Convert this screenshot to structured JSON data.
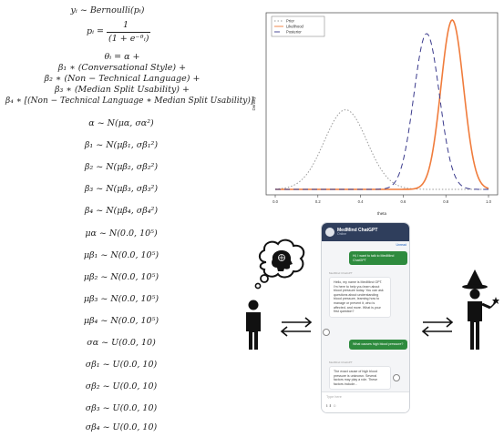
{
  "equations": {
    "likelihood": "yᵢ ~ Bernoulli(pᵢ)",
    "logistic_lhs": "pᵢ =",
    "logistic_num": "1",
    "logistic_den": "(1 + e⁻ᶿᵢ)",
    "linear": [
      "θᵢ = α +",
      "β₁ ∗ (Conversational Style) +",
      "β₂ ∗ (Non − Technical Language) +",
      "β₃ ∗ (Median Split Usability) +",
      "β₄ ∗ [(Non − Technical Language ∗ Median Split Usability)]"
    ],
    "priors": [
      "α ~ N(μα, σα²)",
      "β₁ ~ N(μβ₁, σβ₁²)",
      "β₂ ~ N(μβ₂, σβ₂²)",
      "β₃ ~ N(μβ₃, σβ₃²)",
      "β₄ ~ N(μβ₄, σβ₄²)",
      "μα ~ N(0.0, 10⁵)",
      "μβ₁ ~ N(0.0, 10⁵)",
      "μβ₂ ~ N(0.0, 10⁵)",
      "μβ₃ ~ N(0.0, 10⁵)",
      "μβ₄ ~ N(0.0, 10⁵)",
      "σα ~ U(0.0, 10)",
      "σβ₁ ~ U(0.0, 10)",
      "σβ₂ ~ U(0.0, 10)",
      "σβ₃ ~ U(0.0, 10)",
      "σβ₄ ~ U(0.0, 10)"
    ]
  },
  "chart_data": {
    "type": "line",
    "xlabel": "theta",
    "ylabel": "Density",
    "xlim": [
      0.0,
      1.0
    ],
    "x_ticks": [
      "0.0",
      "0.2",
      "0.4",
      "0.6",
      "0.8",
      "1.0"
    ],
    "legend_position": "top-left",
    "series": [
      {
        "name": "Prior",
        "mean": 0.33,
        "sd": 0.1,
        "peak": 0.47,
        "color": "#999999",
        "dash": "1.5,2"
      },
      {
        "name": "Likelihood",
        "mean": 0.83,
        "sd": 0.053,
        "peak": 1.0,
        "color": "#f07c3c",
        "dash": ""
      },
      {
        "name": "Posterior",
        "mean": 0.71,
        "sd": 0.06,
        "peak": 0.92,
        "color": "#3a3a8c",
        "dash": "6,4"
      }
    ]
  },
  "chat": {
    "title": "MedMind ChatGPT",
    "subtitle": "Online",
    "toolbar": "Unread",
    "messages": [
      {
        "role": "user",
        "text": "Hi, I want to talk to MedMind ChatGPT"
      },
      {
        "role": "bot_meta",
        "text": "MedMind ChatGPT"
      },
      {
        "role": "bot",
        "text": "Hello, my name is MedMind GPT. I'm here to help you learn about blood pressure today. You can ask questions about understanding blood pressure, learning how to manage or prevent it, who is affected, and more. What is your first question?"
      },
      {
        "role": "user",
        "text": "What causes high blood pressure?"
      },
      {
        "role": "bot_meta",
        "text": "MedMind ChatGPT"
      },
      {
        "role": "bot",
        "text": "The exact cause of high blood pressure is unknown. Several factors may play a role. These factors include..."
      }
    ],
    "input_placeholder": "Type here",
    "input_tools": "ℹ ⬇ ☺"
  },
  "icons": {
    "thought": "thinking-head-icon",
    "person_left": "person-icon",
    "arrows": "exchange-arrows-icon",
    "wizard": "wizard-icon"
  }
}
